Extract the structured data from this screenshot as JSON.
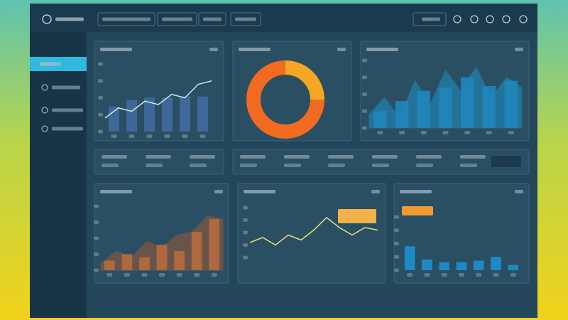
{
  "chart_data": [
    {
      "type": "combo",
      "ylim": [
        0,
        100
      ],
      "series": [
        {
          "kind": "bar",
          "color": "#3f6a9e",
          "values": [
            37,
            47,
            50,
            50,
            52,
            52
          ]
        },
        {
          "kind": "line",
          "color": "#cfe3ea",
          "values": [
            20,
            35,
            30,
            45,
            40,
            55,
            50,
            70,
            75
          ]
        }
      ]
    },
    {
      "type": "donut",
      "colors": [
        "#f5a623",
        "#f26b21"
      ],
      "values": [
        25,
        75
      ]
    },
    {
      "type": "combo",
      "ylim": [
        0,
        100
      ],
      "series": [
        {
          "kind": "area",
          "color": "#1e8fc4",
          "values": [
            20,
            45,
            15,
            70,
            35,
            85,
            55,
            90,
            45,
            75,
            60
          ]
        },
        {
          "kind": "bar",
          "color": "#1f86bb",
          "values": [
            25,
            40,
            55,
            60,
            75,
            62,
            70
          ]
        }
      ]
    },
    {
      "type": "combo",
      "ylim": [
        0,
        100
      ],
      "series": [
        {
          "kind": "area",
          "color": "#9a5a3a",
          "values": [
            10,
            30,
            20,
            45,
            35,
            55,
            60,
            85,
            80
          ]
        },
        {
          "kind": "bar",
          "color": "#b86a3e",
          "values": [
            15,
            25,
            20,
            40,
            30,
            60,
            80
          ]
        }
      ]
    },
    {
      "type": "combo",
      "ylim": [
        0,
        100
      ],
      "series": [
        {
          "kind": "line",
          "color": "#e9dd7a",
          "values": [
            30,
            40,
            25,
            45,
            35,
            55,
            80,
            60,
            45,
            60,
            55
          ]
        }
      ]
    },
    {
      "type": "combo",
      "ylim": [
        0,
        100
      ],
      "series": [
        {
          "kind": "bar",
          "color": "#1e8fd0",
          "values": [
            45,
            20,
            15,
            15,
            18,
            25,
            10
          ]
        }
      ]
    }
  ]
}
